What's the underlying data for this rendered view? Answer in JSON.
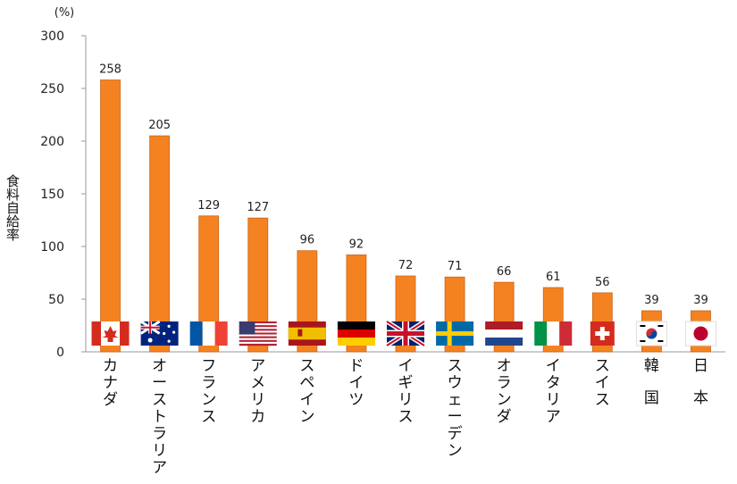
{
  "chart_data": {
    "type": "bar",
    "unit": "(%)",
    "ylabel": "食料自給率",
    "ylim": [
      0,
      300
    ],
    "yticks": [
      "0",
      "50",
      "100",
      "150",
      "200",
      "250",
      "300"
    ],
    "categories": [
      "カナダ",
      "オーストラリア",
      "フランス",
      "アメリカ",
      "スペイン",
      "ドイツ",
      "イギリス",
      "スウェーデン",
      "オランダ",
      "イタリア",
      "スイス",
      "韓国",
      "日本"
    ],
    "values": [
      258,
      205,
      129,
      127,
      96,
      92,
      72,
      71,
      66,
      61,
      56,
      39,
      39
    ],
    "value_labels": [
      "258",
      "205",
      "129",
      "127",
      "96",
      "92",
      "72",
      "71",
      "66",
      "61",
      "56",
      "39",
      "39"
    ],
    "flags": [
      "canada-flag",
      "australia-flag",
      "france-flag",
      "usa-flag",
      "spain-flag",
      "germany-flag",
      "uk-flag",
      "sweden-flag",
      "netherlands-flag",
      "italy-flag",
      "switzerland-flag",
      "korea-flag",
      "japan-flag"
    ],
    "bar_color": "#F58220",
    "grid": false
  }
}
